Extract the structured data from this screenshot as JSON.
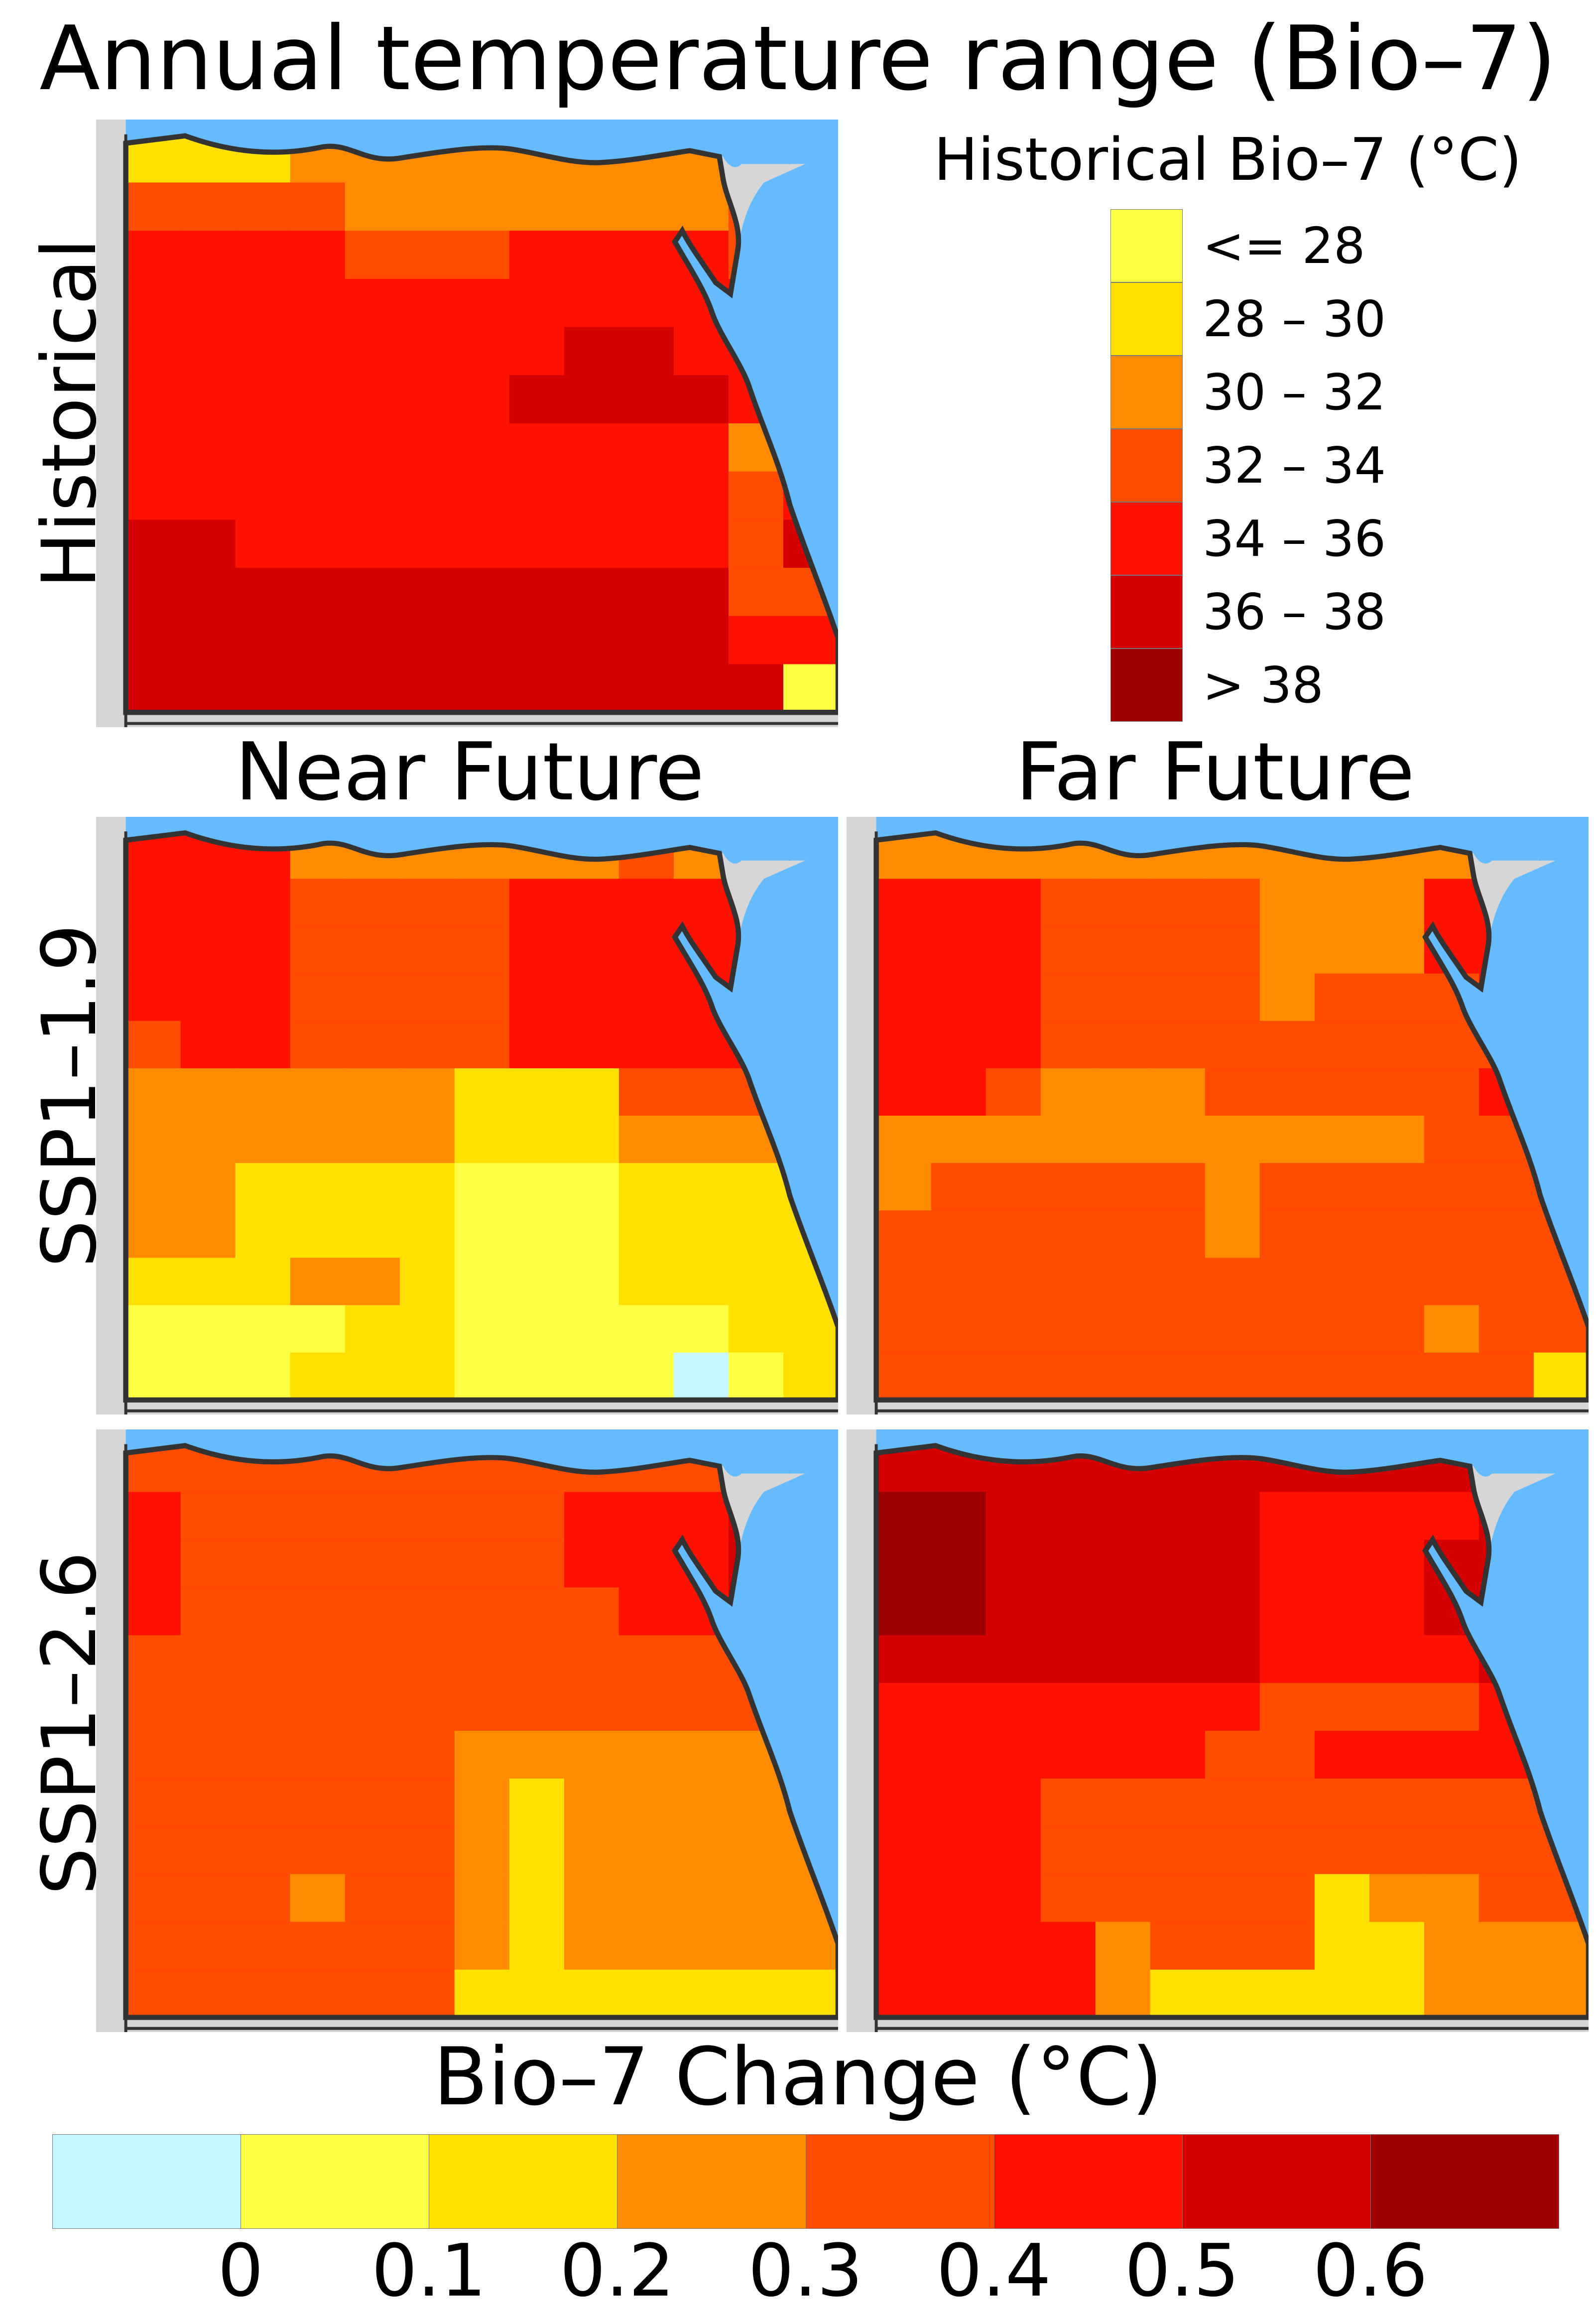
{
  "title": "Annual temperature range (Bio–7)",
  "column_titles": {
    "near": "Near Future",
    "far": "Far Future"
  },
  "row_labels": {
    "historical": "Historical",
    "ssp119": "SSP1–1.9",
    "ssp126": "SSP1–2.6"
  },
  "colors": {
    "sea": "#66bbff",
    "land_outside": "#d6d6d6",
    "border": "#333333",
    "c0": "#c6f6ff",
    "c1": "#ffff44",
    "c2": "#ffe000",
    "c3": "#ff8c00",
    "c4": "#ff4d00",
    "c5": "#ff1100",
    "c6": "#d40000",
    "c7": "#9e0000"
  },
  "historical_legend": {
    "title": "Historical Bio–7 (°C)",
    "items": [
      {
        "label": "<= 28",
        "color": "#ffff44"
      },
      {
        "label": "28 – 30",
        "color": "#ffe000"
      },
      {
        "label": "30 – 32",
        "color": "#ff8c00"
      },
      {
        "label": "32 – 34",
        "color": "#ff4d00"
      },
      {
        "label": "34 – 36",
        "color": "#ff1100"
      },
      {
        "label": "36 – 38",
        "color": "#d40000"
      },
      {
        "label": "> 38",
        "color": "#9e0000"
      }
    ]
  },
  "change_colorbar": {
    "title": "Bio–7 Change (°C)",
    "colors": [
      "#c6f6ff",
      "#ffff44",
      "#ffe000",
      "#ff8c00",
      "#ff4d00",
      "#ff1100",
      "#d40000",
      "#9e0000"
    ],
    "tick_labels": [
      "0",
      "0.1",
      "0.2",
      "0.3",
      "0.4",
      "0.5",
      "0.6"
    ]
  },
  "panels": {
    "historical": [
      "2223333333332",
      "4444333333344",
      "5555444555545",
      "5555555555555",
      "5555555566555",
      "5555555666655",
      "5555555555534",
      "5555555555545",
      "6655555555546",
      "6666666666644",
      "6666666666655",
      "6666666666661"
    ],
    "near_119": [
      "5553333334333",
      "5554444555555",
      "5554444555555",
      "5554444555555",
      "4554444555555",
      "3333332224444",
      "3333332223333",
      "3322221112222",
      "3322221112222",
      "2223321112222",
      "1111221111122",
      "1112221111012"
    ],
    "near_126": [
      "4444444444444",
      "5444444455566",
      "5444444455566",
      "5444444445566",
      "4444444444444",
      "4444444444444",
      "4444443333333",
      "4444443233333",
      "4444443233333",
      "4443443233333",
      "4444443233333",
      "4444442222222"
    ],
    "far_119": [
      "3333333333333",
      "5554444333555",
      "5554444333555",
      "5554444344455",
      "5554444444444",
      "5543334444455",
      "3333333333444",
      "3444443444444",
      "4444443444444",
      "4444444444444",
      "4444444444344",
      "4444444444442"
    ],
    "far_126": [
      "6666666666666",
      "7766666555566",
      "7766666555667",
      "7766666555667",
      "6666666555566",
      "5555555444455",
      "5555554455555",
      "5554444444444",
      "5554444444444",
      "5554444423344",
      "5555344422333",
      "5555322222333"
    ]
  }
}
